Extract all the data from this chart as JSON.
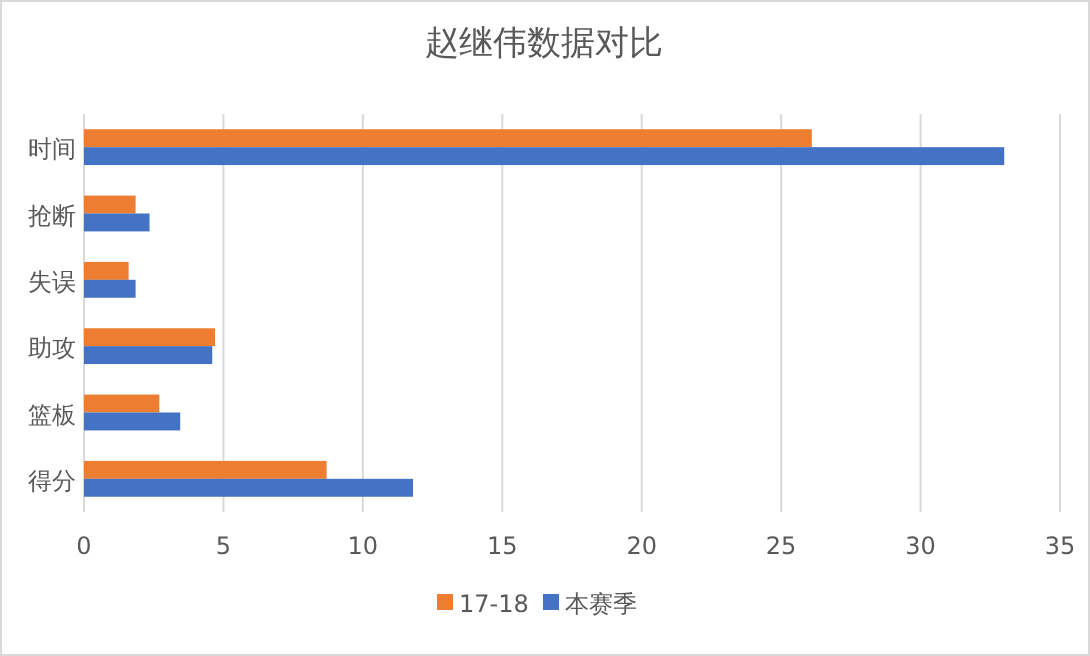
{
  "chart_data": {
    "type": "bar",
    "orientation": "horizontal",
    "title": "赵继伟数据对比",
    "categories": [
      "时间",
      "抢断",
      "失误",
      "助攻",
      "篮板",
      "得分"
    ],
    "series": [
      {
        "name": "17-18",
        "color": "#ed7d31",
        "values": [
          26.1,
          1.85,
          1.6,
          4.7,
          2.7,
          8.7
        ]
      },
      {
        "name": "本赛季",
        "color": "#4472c4",
        "values": [
          33.0,
          2.35,
          1.85,
          4.6,
          3.45,
          11.8
        ]
      }
    ],
    "xlim": [
      0,
      35
    ],
    "xticks": [
      0,
      5,
      10,
      15,
      20,
      25,
      30,
      35
    ],
    "grid": "x",
    "legend": "bottom"
  }
}
